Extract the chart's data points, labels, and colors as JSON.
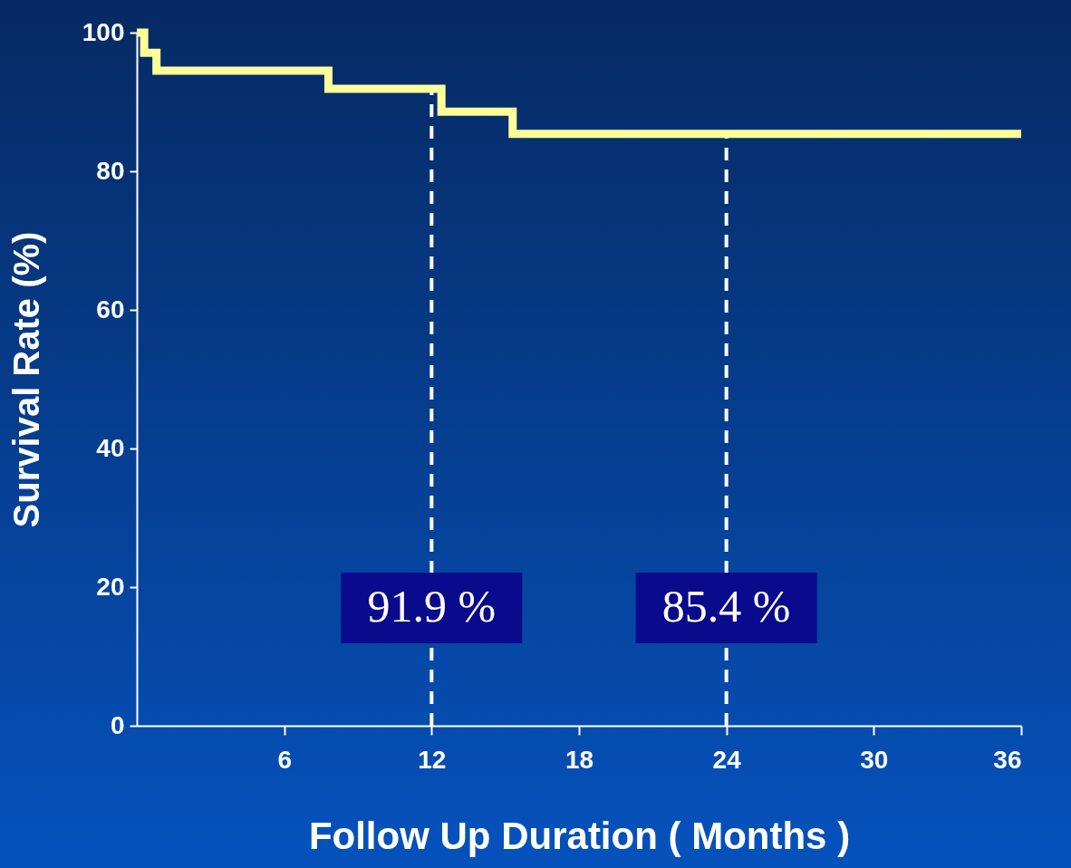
{
  "chart_data": {
    "type": "step",
    "xlabel": "Follow Up Duration ( Months )",
    "ylabel": "Survival Rate (%)",
    "xlim": [
      0,
      36
    ],
    "xticks": [
      6,
      12,
      18,
      24,
      30,
      36
    ],
    "ylim": [
      0,
      100
    ],
    "yticks": [
      0,
      20,
      40,
      60,
      80,
      100
    ],
    "grid": false,
    "series": [
      {
        "color": "#ffff99",
        "x": [
          0,
          0.3,
          0.8,
          7.8,
          12.4,
          15.3,
          36
        ],
        "values": [
          100,
          97.1,
          94.5,
          91.9,
          88.6,
          85.4,
          85.4
        ]
      }
    ],
    "annotations": [
      {
        "text": "91.9 %",
        "x": 12,
        "y": 17
      },
      {
        "text": "85.4 %",
        "x": 24,
        "y": 17
      }
    ],
    "ref_lines": [
      {
        "axis": "x",
        "value": 12,
        "color": "#ffffff",
        "line_style": "dashed"
      },
      {
        "axis": "x",
        "value": 24,
        "color": "#ffffff",
        "line_style": "dashed"
      }
    ]
  }
}
